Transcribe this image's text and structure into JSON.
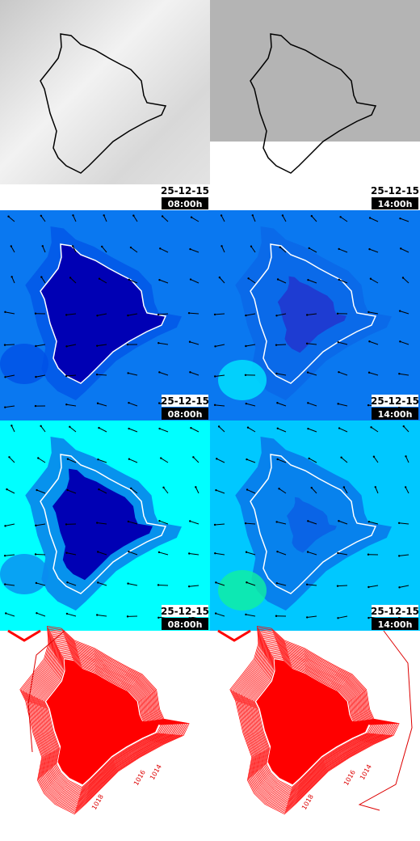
{
  "panels": [
    {
      "date": "25-12-15",
      "time": "08:00h"
    },
    {
      "date": "25-12-15",
      "time": "14:00h"
    },
    {
      "date": "25-12-15",
      "time": "08:00h"
    },
    {
      "date": "25-12-15",
      "time": "14:00h"
    },
    {
      "date": "25-12-15",
      "time": "08:00h"
    },
    {
      "date": "25-12-15",
      "time": "14:00h"
    }
  ],
  "contour_labels": [
    [
      "1018",
      "1016",
      "1014"
    ],
    [
      "1018",
      "1016",
      "1014"
    ]
  ]
}
